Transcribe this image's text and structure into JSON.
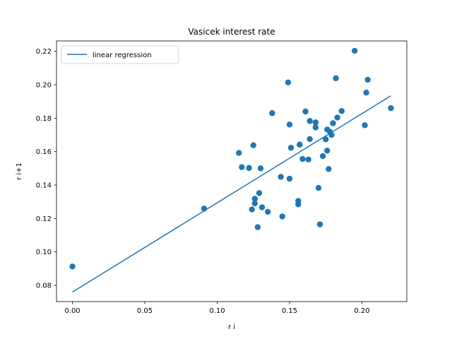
{
  "chart_data": {
    "type": "scatter",
    "title": "Vasicek interest rate",
    "xlabel": "r i",
    "ylabel": "r i+1",
    "xlim": [
      -0.011,
      0.231
    ],
    "ylim": [
      0.0703,
      0.2262
    ],
    "xticks": [
      0.0,
      0.05,
      0.1,
      0.15,
      0.2
    ],
    "xtick_labels": [
      "0.00",
      "0.05",
      "0.10",
      "0.15",
      "0.20"
    ],
    "yticks": [
      0.08,
      0.1,
      0.12,
      0.14,
      0.16,
      0.18,
      0.2,
      0.22
    ],
    "ytick_labels": [
      "0.08",
      "0.10",
      "0.12",
      "0.14",
      "0.16",
      "0.18",
      "0.20",
      "0.22"
    ],
    "grid": false,
    "legend": {
      "placement": "top-left",
      "entries": [
        "linear regression"
      ]
    },
    "series": [
      {
        "type": "scatter",
        "color": "#1f77b4",
        "points": [
          [
            0.0,
            0.0913
          ],
          [
            0.091,
            0.1259
          ],
          [
            0.115,
            0.1592
          ],
          [
            0.117,
            0.1507
          ],
          [
            0.122,
            0.1502
          ],
          [
            0.124,
            0.1254
          ],
          [
            0.125,
            0.1638
          ],
          [
            0.126,
            0.1318
          ],
          [
            0.126,
            0.129
          ],
          [
            0.128,
            0.1148
          ],
          [
            0.129,
            0.1352
          ],
          [
            0.13,
            0.15
          ],
          [
            0.131,
            0.1267
          ],
          [
            0.135,
            0.124
          ],
          [
            0.138,
            0.183
          ],
          [
            0.144,
            0.1449
          ],
          [
            0.145,
            0.1212
          ],
          [
            0.149,
            0.2014
          ],
          [
            0.15,
            0.1762
          ],
          [
            0.15,
            0.1438
          ],
          [
            0.151,
            0.1623
          ],
          [
            0.156,
            0.1285
          ],
          [
            0.156,
            0.1305
          ],
          [
            0.157,
            0.1642
          ],
          [
            0.159,
            0.1556
          ],
          [
            0.161,
            0.184
          ],
          [
            0.163,
            0.1553
          ],
          [
            0.164,
            0.1783
          ],
          [
            0.164,
            0.1675
          ],
          [
            0.168,
            0.1775
          ],
          [
            0.168,
            0.1745
          ],
          [
            0.17,
            0.1383
          ],
          [
            0.171,
            0.1165
          ],
          [
            0.173,
            0.1573
          ],
          [
            0.175,
            0.1674
          ],
          [
            0.176,
            0.1732
          ],
          [
            0.176,
            0.1606
          ],
          [
            0.177,
            0.1496
          ],
          [
            0.178,
            0.1718
          ],
          [
            0.179,
            0.17
          ],
          [
            0.18,
            0.177
          ],
          [
            0.182,
            0.2039
          ],
          [
            0.183,
            0.1804
          ],
          [
            0.186,
            0.1843
          ],
          [
            0.195,
            0.2203
          ],
          [
            0.202,
            0.1758
          ],
          [
            0.203,
            0.1953
          ],
          [
            0.204,
            0.203
          ],
          [
            0.22,
            0.186
          ]
        ]
      },
      {
        "name": "linear regression",
        "type": "line",
        "color": "#1f77b4",
        "points": [
          [
            0.0,
            0.076
          ],
          [
            0.22,
            0.1934
          ]
        ]
      }
    ]
  }
}
